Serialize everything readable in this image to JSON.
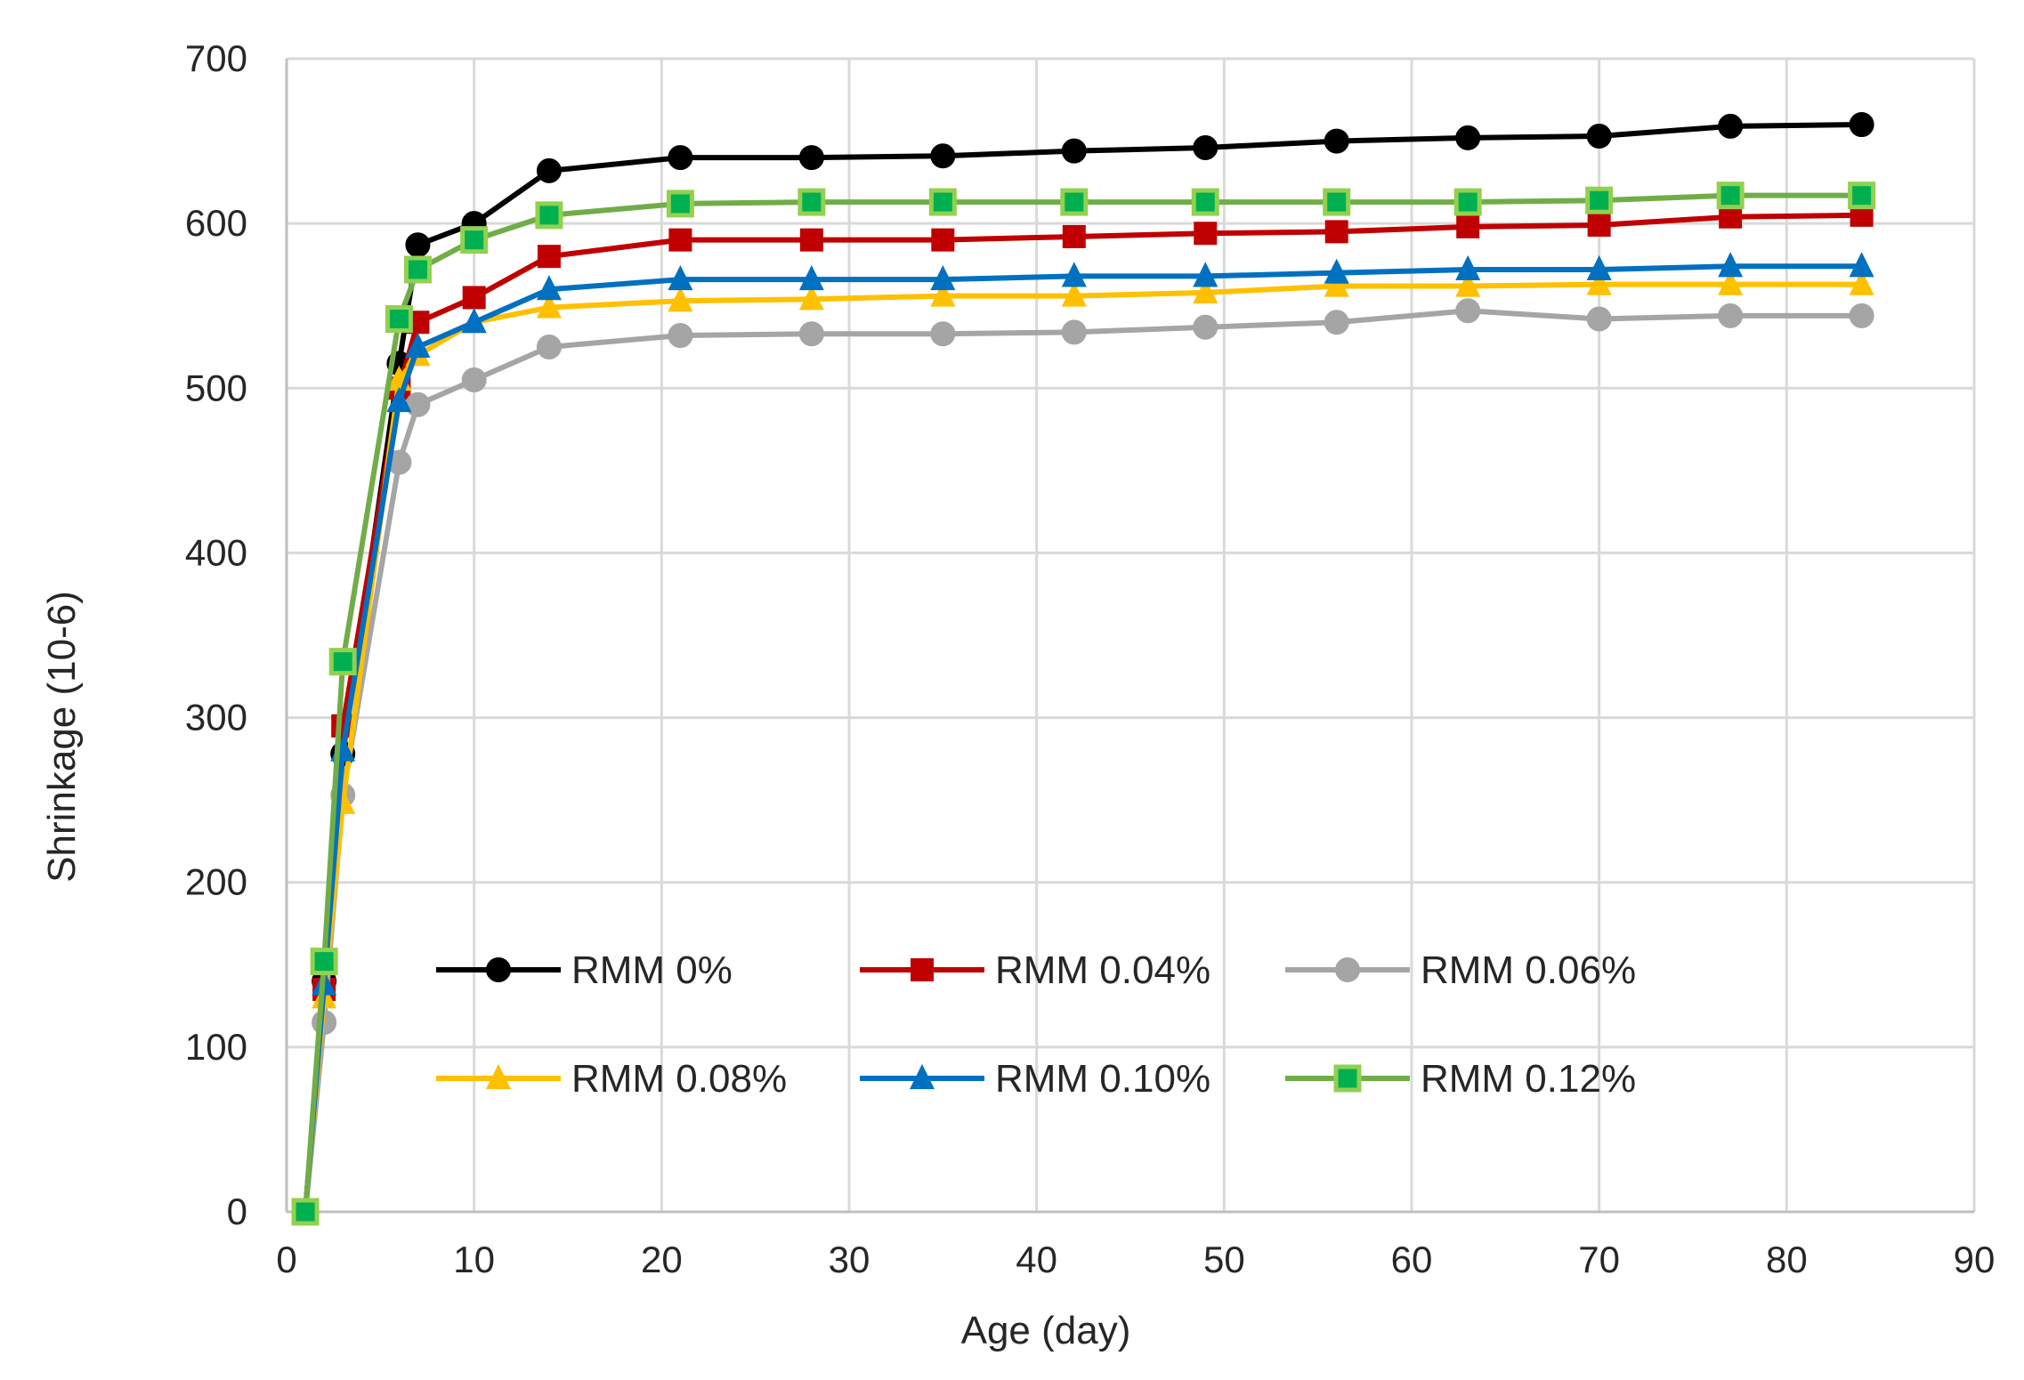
{
  "chart_data": {
    "type": "line",
    "title": "",
    "xlabel": "Age (day)",
    "ylabel": "Shrinkage (10-6)",
    "xlim": [
      0,
      90
    ],
    "ylim": [
      0,
      700
    ],
    "xticks": [
      0,
      10,
      20,
      30,
      40,
      50,
      60,
      70,
      80,
      90
    ],
    "yticks": [
      0,
      100,
      200,
      300,
      400,
      500,
      600,
      700
    ],
    "grid": true,
    "legend_position": "lower-center",
    "x": [
      1,
      2,
      3,
      6,
      7,
      10,
      14,
      21,
      28,
      35,
      42,
      49,
      56,
      63,
      70,
      77,
      84
    ],
    "series": [
      {
        "name": "RMM 0%",
        "color": "#000000",
        "marker": "circle",
        "values": [
          0,
          140,
          278,
          515,
          587,
          600,
          632,
          640,
          640,
          641,
          644,
          646,
          650,
          652,
          653,
          659,
          660
        ]
      },
      {
        "name": "RMM 0.04%",
        "color": "#C00000",
        "marker": "square",
        "values": [
          0,
          135,
          295,
          500,
          540,
          555,
          580,
          590,
          590,
          590,
          592,
          594,
          595,
          598,
          599,
          604,
          605
        ]
      },
      {
        "name": "RMM 0.06%",
        "color": "#A5A5A5",
        "marker": "circle",
        "values": [
          0,
          115,
          253,
          455,
          490,
          505,
          525,
          532,
          533,
          533,
          534,
          537,
          540,
          547,
          542,
          544,
          544
        ]
      },
      {
        "name": "RMM 0.08%",
        "color": "#FFC000",
        "marker": "triangle",
        "values": [
          0,
          130,
          248,
          505,
          520,
          540,
          549,
          553,
          554,
          556,
          556,
          558,
          562,
          562,
          563,
          563,
          563
        ]
      },
      {
        "name": "RMM 0.10%",
        "color": "#0070C0",
        "marker": "triangle",
        "values": [
          0,
          138,
          280,
          492,
          525,
          540,
          560,
          566,
          566,
          566,
          568,
          568,
          570,
          572,
          572,
          574,
          574
        ]
      },
      {
        "name": "RMM 0.12%",
        "color": "#70AD47",
        "marker": "square-green",
        "values": [
          0,
          152,
          334,
          542,
          572,
          590,
          605,
          612,
          613,
          613,
          613,
          613,
          613,
          613,
          614,
          617,
          617
        ]
      }
    ]
  }
}
